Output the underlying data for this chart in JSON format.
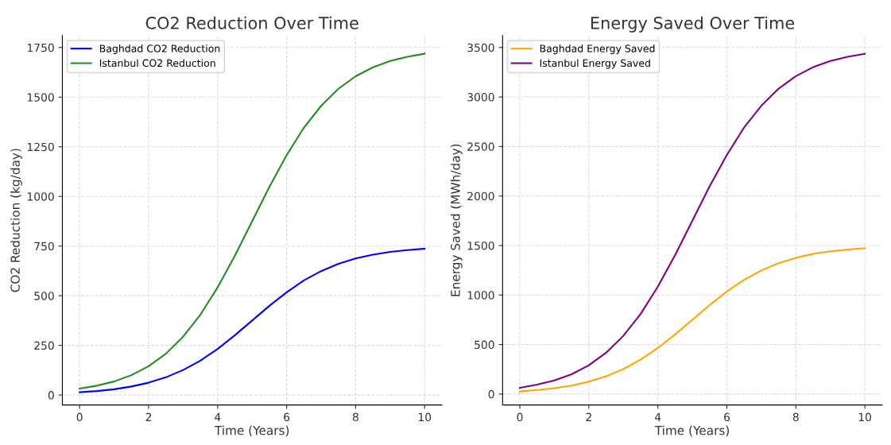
{
  "chart_data": [
    {
      "type": "line",
      "title": "CO2 Reduction Over Time",
      "xlabel": "Time (Years)",
      "ylabel": "CO2 Reduction (kg/day)",
      "x": [
        0,
        0.5,
        1,
        1.5,
        2,
        2.5,
        3,
        3.5,
        4,
        4.5,
        5,
        5.5,
        6,
        6.5,
        7,
        7.5,
        8,
        8.5,
        9,
        9.5,
        10
      ],
      "series": [
        {
          "name": "Baghdad CO2 Reduction",
          "color": "#0000ff",
          "values": [
            14,
            20,
            29,
            43,
            62,
            89,
            126,
            173,
            232,
            301,
            375,
            449,
            517,
            577,
            624,
            661,
            688,
            707,
            721,
            730,
            737
          ]
        },
        {
          "name": "Istanbul CO2 Reduction",
          "color": "#228b22",
          "values": [
            32,
            47,
            68,
            100,
            145,
            208,
            294,
            404,
            542,
            702,
            875,
            1048,
            1208,
            1346,
            1456,
            1542,
            1605,
            1650,
            1682,
            1703,
            1719
          ]
        }
      ],
      "xlim": [
        -0.5,
        10.5
      ],
      "xticks": [
        0,
        2,
        4,
        6,
        8,
        10
      ],
      "ylim": [
        -50,
        1810
      ],
      "yticks": [
        0,
        250,
        500,
        750,
        1000,
        1250,
        1500,
        1750
      ],
      "grid": true,
      "legend": "top left",
      "marker": "none",
      "line_style": "solid"
    },
    {
      "type": "line",
      "title": "Energy Saved Over Time",
      "xlabel": "Time (Years)",
      "ylabel": "Energy Saved (MWh/day)",
      "x": [
        0,
        0.5,
        1,
        1.5,
        2,
        2.5,
        3,
        3.5,
        4,
        4.5,
        5,
        5.5,
        6,
        6.5,
        7,
        7.5,
        8,
        8.5,
        9,
        9.5,
        10
      ],
      "series": [
        {
          "name": "Baghdad Energy Saved",
          "color": "#ffa500",
          "values": [
            27,
            41,
            59,
            86,
            125,
            179,
            252,
            347,
            465,
            602,
            750,
            898,
            1035,
            1154,
            1248,
            1322,
            1376,
            1415,
            1442,
            1460,
            1473
          ]
        },
        {
          "name": "Istanbul Energy Saved",
          "color": "#800080",
          "values": [
            63,
            95,
            137,
            200,
            291,
            417,
            588,
            809,
            1085,
            1404,
            1750,
            2097,
            2415,
            2692,
            2912,
            3084,
            3210,
            3301,
            3364,
            3406,
            3437
          ]
        }
      ],
      "xlim": [
        -0.5,
        10.5
      ],
      "xticks": [
        0,
        2,
        4,
        6,
        8,
        10
      ],
      "ylim": [
        -110,
        3620
      ],
      "yticks": [
        0,
        500,
        1000,
        1500,
        2000,
        2500,
        3000,
        3500
      ],
      "grid": true,
      "legend": "top left",
      "marker": "none",
      "line_style": "solid"
    }
  ]
}
